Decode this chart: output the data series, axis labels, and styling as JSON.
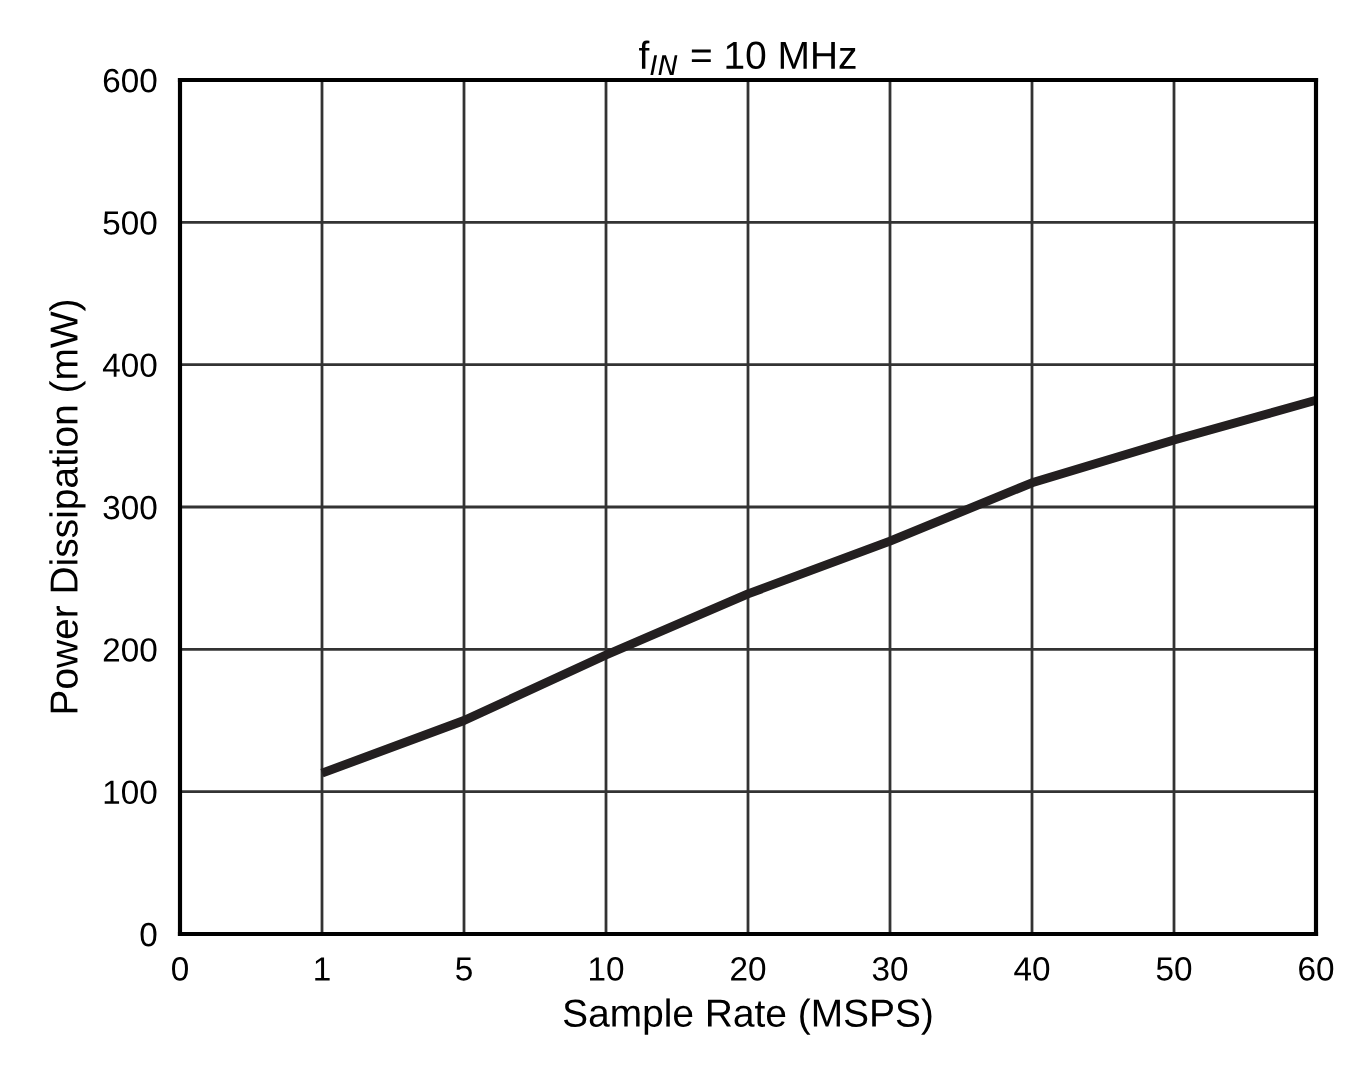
{
  "chart_data": {
    "type": "line",
    "subtitle": "f$_{IN}$ = 10 MHz",
    "xlabel": "Sample Rate (MSPS)",
    "ylabel": "Power Dissipation (mW)",
    "categories": [
      "0",
      "1",
      "5",
      "10",
      "20",
      "30",
      "40",
      "50",
      "60"
    ],
    "series": [
      {
        "color": "#231f20",
        "values": [
          null,
          113,
          150,
          196,
          239,
          276,
          317,
          347,
          375
        ]
      }
    ],
    "ylim": [
      0,
      600
    ],
    "yticks": [
      0,
      100,
      200,
      300,
      400,
      500,
      600
    ],
    "grid": true,
    "legend": false,
    "marker": "none",
    "line_style": "solid"
  }
}
